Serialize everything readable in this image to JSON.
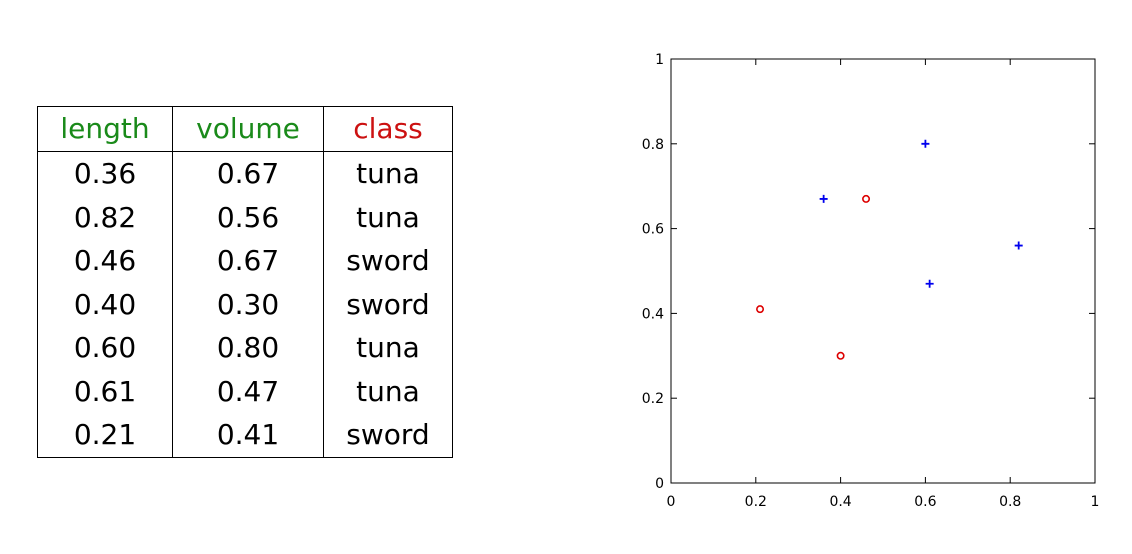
{
  "table": {
    "headers": [
      {
        "label": "length",
        "color": "#1a8a1a"
      },
      {
        "label": "volume",
        "color": "#1a8a1a"
      },
      {
        "label": "class",
        "color": "#cc1111"
      }
    ],
    "rows": [
      [
        "0.36",
        "0.67",
        "tuna"
      ],
      [
        "0.82",
        "0.56",
        "tuna"
      ],
      [
        "0.46",
        "0.67",
        "sword"
      ],
      [
        "0.40",
        "0.30",
        "sword"
      ],
      [
        "0.60",
        "0.80",
        "tuna"
      ],
      [
        "0.61",
        "0.47",
        "tuna"
      ],
      [
        "0.21",
        "0.41",
        "sword"
      ]
    ]
  },
  "chart_data": {
    "type": "scatter",
    "title": "",
    "xlabel": "",
    "ylabel": "",
    "xlim": [
      0,
      1
    ],
    "ylim": [
      0,
      1
    ],
    "xticks": [
      "0",
      "0.2",
      "0.4",
      "0.6",
      "0.8",
      "1"
    ],
    "yticks": [
      "0",
      "0.2",
      "0.4",
      "0.6",
      "0.8",
      "1"
    ],
    "grid": false,
    "series": [
      {
        "marker": "plus",
        "color": "#0000ee",
        "points": [
          [
            0.36,
            0.67
          ],
          [
            0.82,
            0.56
          ],
          [
            0.6,
            0.8
          ],
          [
            0.61,
            0.47
          ]
        ]
      },
      {
        "marker": "circle",
        "color": "#dd0000",
        "points": [
          [
            0.46,
            0.67
          ],
          [
            0.4,
            0.3
          ],
          [
            0.21,
            0.41
          ]
        ]
      }
    ]
  }
}
